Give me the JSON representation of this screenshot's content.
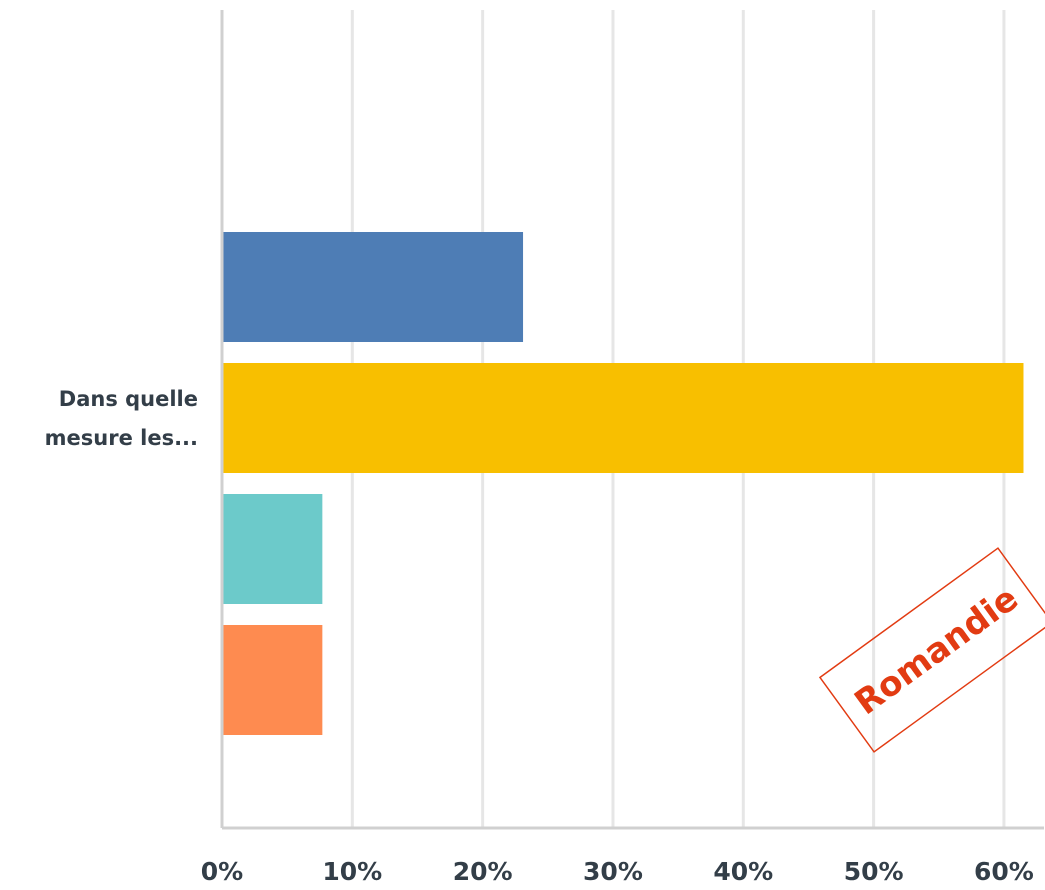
{
  "chart_data": {
    "type": "bar",
    "orientation": "horizontal",
    "category_label_lines": [
      "Dans quelle",
      "mesure les..."
    ],
    "categories": [
      "Dans quelle mesure les..."
    ],
    "series": [
      {
        "color": "#4e7db5",
        "values": [
          23.1
        ]
      },
      {
        "color": "#f8bf00",
        "values": [
          61.5
        ]
      },
      {
        "color": "#6ccaca",
        "values": [
          7.7
        ]
      },
      {
        "color": "#fe8b50",
        "values": [
          7.7
        ]
      }
    ],
    "xlim": [
      0,
      62
    ],
    "xticks": [
      0,
      10,
      20,
      30,
      40,
      50,
      60
    ],
    "xtick_labels": [
      "0%",
      "10%",
      "20%",
      "30%",
      "40%",
      "50%",
      "60%"
    ],
    "grid": true,
    "legend": "none"
  },
  "stamp": {
    "text": "Romandie",
    "color": "#e23b12"
  }
}
